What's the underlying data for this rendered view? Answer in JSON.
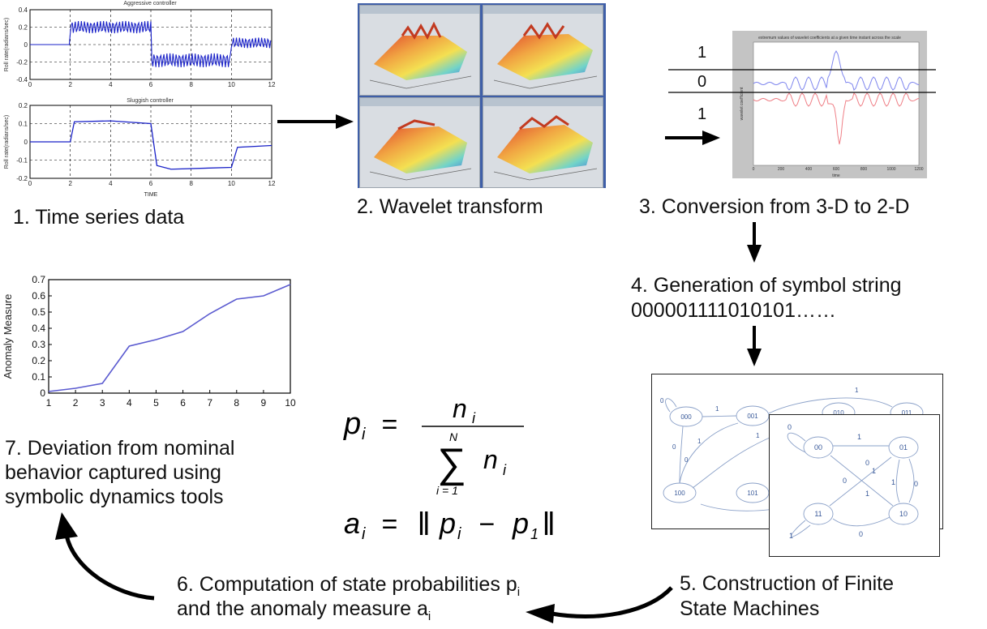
{
  "steps": {
    "s1": "1. Time series data",
    "s2": "2. Wavelet transform",
    "s3": "3. Conversion from 3-D to 2-D",
    "s4_line1": "4. Generation of symbol string",
    "s4_line2": "000001111010101……",
    "s5_line1": "5. Construction of Finite",
    "s5_line2": "State Machines",
    "s6_line1_pre": "6. Computation of state probabilities p",
    "s6_line1_sub": "i",
    "s6_line2_pre": "and the anomaly measure a",
    "s6_line2_sub": "i",
    "s7": "7. Deviation from nominal behavior captured using symbolic dynamics tools"
  },
  "timeseries": {
    "top_title": "Aggressive controller",
    "top_ylabel": "Roll rate(radians/sec)",
    "top_yticks": [
      "0.4",
      "0.2",
      "0",
      "-0.2",
      "-0.4"
    ],
    "bottom_title": "Sluggish controller",
    "bottom_ylabel": "Roll rate(radians/sec)",
    "bottom_yticks": [
      "0.2",
      "0.1",
      "0",
      "-0.1",
      "-0.2"
    ],
    "xticks": [
      "0",
      "2",
      "4",
      "6",
      "8",
      "10",
      "12"
    ],
    "xlabel": "TIME"
  },
  "conversion": {
    "band_top": "1",
    "band_mid": "0",
    "band_bot": "1",
    "plot_title": "extremum values of wavelet coefficients at a given time instant across the scale",
    "ylabel": "wavelet coefficient",
    "xlabel": "time",
    "xticks": [
      "0",
      "200",
      "400",
      "600",
      "800",
      "1000",
      "1200"
    ],
    "colors": {
      "upper": "#7f86ee",
      "lower": "#ef7f86"
    }
  },
  "fsm_back": {
    "states": [
      "000",
      "001",
      "010",
      "011",
      "100",
      "101"
    ],
    "edge_labels": [
      "0",
      "1",
      "1",
      "0",
      "1",
      "0",
      "1",
      "0",
      "1"
    ]
  },
  "fsm_front": {
    "states": [
      "00",
      "01",
      "11",
      "10"
    ],
    "edge_labels": [
      "0",
      "1",
      "0",
      "1",
      "0",
      "1",
      "0",
      "1",
      "0",
      "1"
    ]
  },
  "equations": {
    "p": "p",
    "i": "i",
    "eq": "=",
    "n": "n",
    "N": "N",
    "sum": "∑",
    "lower_limit": "i = 1",
    "a": "a",
    "minus": "−",
    "one": "1",
    "norm": "‖"
  },
  "chart_data": {
    "type": "line",
    "x": [
      1,
      2,
      3,
      4,
      5,
      6,
      7,
      8,
      9,
      10
    ],
    "values": [
      0.01,
      0.03,
      0.06,
      0.29,
      0.33,
      0.38,
      0.49,
      0.58,
      0.6,
      0.67
    ],
    "xticks": [
      "1",
      "2",
      "3",
      "4",
      "5",
      "6",
      "7",
      "8",
      "9",
      "10"
    ],
    "yticks": [
      "0",
      "0.1",
      "0.2",
      "0.3",
      "0.4",
      "0.5",
      "0.6",
      "0.7"
    ],
    "ylabel": "Anomaly Measure",
    "xlim": [
      1,
      10
    ],
    "ylim": [
      0,
      0.7
    ],
    "line_color": "#5b5bd0"
  }
}
